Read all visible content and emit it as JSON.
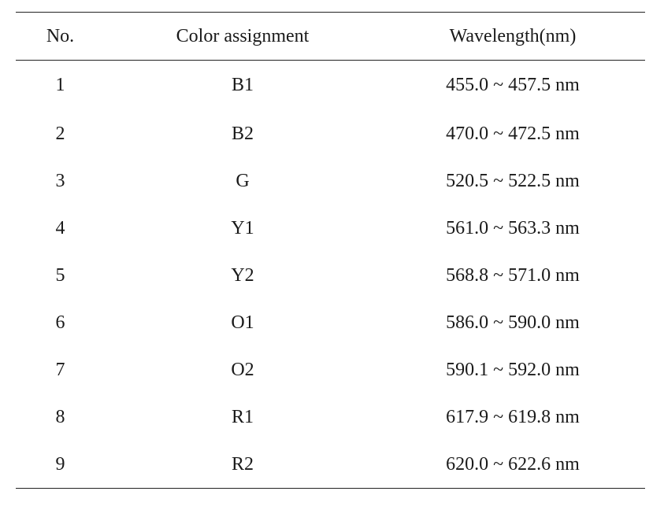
{
  "table": {
    "headers": {
      "no": "No.",
      "color": "Color assignment",
      "wavelength": "Wavelength(nm)"
    },
    "rows": [
      {
        "no": "1",
        "color": "B1",
        "wavelength": "455.0 ~ 457.5 nm"
      },
      {
        "no": "2",
        "color": "B2",
        "wavelength": "470.0 ~ 472.5 nm"
      },
      {
        "no": "3",
        "color": "G",
        "wavelength": "520.5 ~ 522.5 nm"
      },
      {
        "no": "4",
        "color": "Y1",
        "wavelength": "561.0 ~ 563.3 nm"
      },
      {
        "no": "5",
        "color": "Y2",
        "wavelength": "568.8 ~ 571.0 nm"
      },
      {
        "no": "6",
        "color": "O1",
        "wavelength": "586.0 ~ 590.0 nm"
      },
      {
        "no": "7",
        "color": "O2",
        "wavelength": "590.1 ~ 592.0 nm"
      },
      {
        "no": "8",
        "color": "R1",
        "wavelength": "617.9 ~ 619.8 nm"
      },
      {
        "no": "9",
        "color": "R2",
        "wavelength": "620.0 ~ 622.6 nm"
      }
    ]
  }
}
